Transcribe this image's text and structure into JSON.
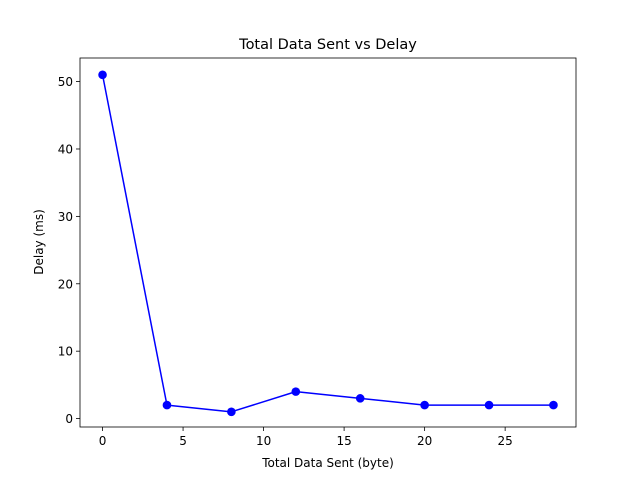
{
  "chart_data": {
    "type": "line",
    "title": "Total Data Sent vs Delay",
    "xlabel": "Total Data Sent (byte)",
    "ylabel": "Delay (ms)",
    "xlim": [
      -1.4,
      29.4
    ],
    "ylim": [
      -1.25,
      53.5
    ],
    "x_ticks": [
      0,
      5,
      10,
      15,
      20,
      25
    ],
    "y_ticks": [
      0,
      10,
      20,
      30,
      40,
      50
    ],
    "grid": false,
    "series": [
      {
        "color": "#0000ff",
        "marker": "circle",
        "x": [
          0,
          4,
          8,
          12,
          16,
          20,
          24,
          28
        ],
        "y": [
          51,
          2,
          1,
          4,
          3,
          2,
          2,
          2
        ]
      }
    ]
  }
}
